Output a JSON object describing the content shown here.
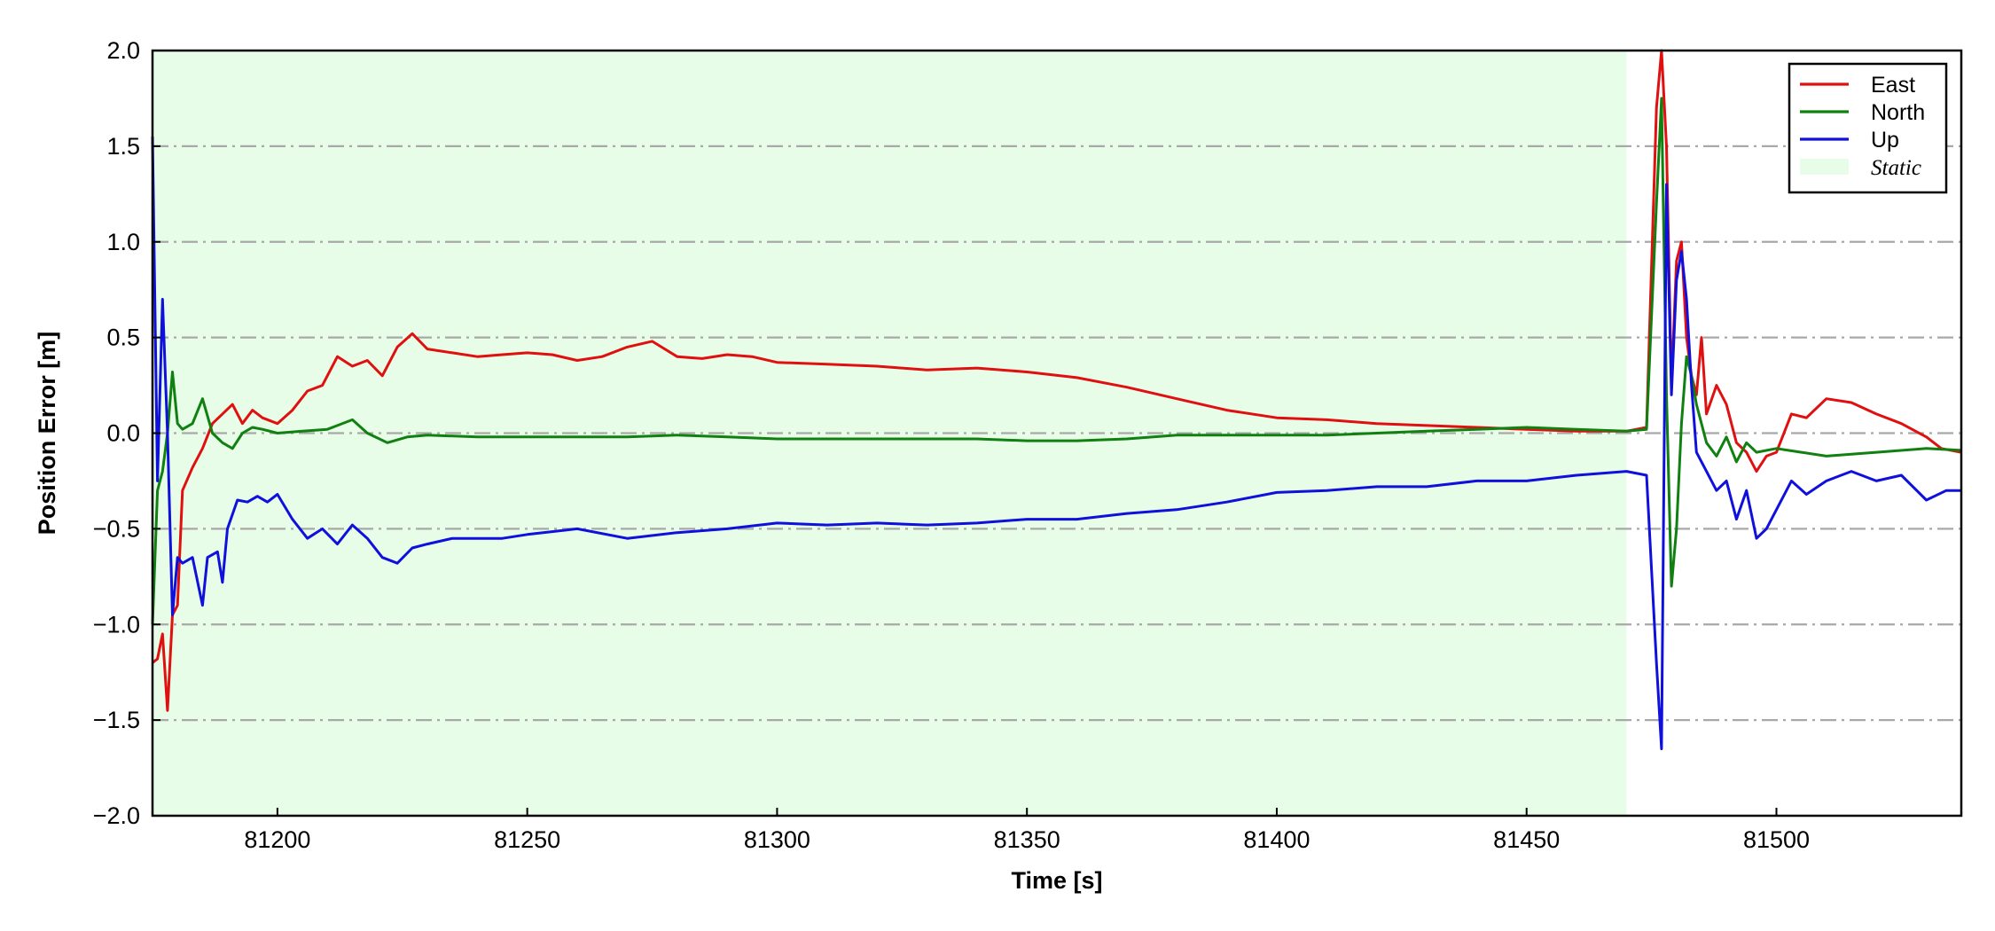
{
  "chart_data": {
    "type": "line",
    "title": "",
    "xlabel": "Time [s]",
    "ylabel": "Position Error [m]",
    "xlim": [
      81175,
      81537
    ],
    "ylim": [
      -2.0,
      2.0
    ],
    "x_ticks": [
      81200,
      81250,
      81300,
      81350,
      81400,
      81450,
      81500
    ],
    "x_tick_labels": [
      "81200",
      "81250",
      "81300",
      "81350",
      "81400",
      "81450",
      "81500"
    ],
    "y_ticks": [
      -2.0,
      -1.5,
      -1.0,
      -0.5,
      0.0,
      0.5,
      1.0,
      1.5,
      2.0
    ],
    "y_tick_labels": [
      "−2.0",
      "−1.5",
      "−1.0",
      "−0.5",
      "0.0",
      "0.5",
      "1.0",
      "1.5",
      "2.0"
    ],
    "grid": "horizontal dash-dot gray",
    "legend_position": "top-right",
    "shaded_region": {
      "name": "Static",
      "x_start": 81175,
      "x_end": 81470,
      "color": "#e8fde8"
    },
    "series": [
      {
        "name": "East",
        "color": "#e01010",
        "x": [
          81175,
          81176,
          81177,
          81178,
          81179,
          81180,
          81181,
          81183,
          81185,
          81187,
          81189,
          81191,
          81193,
          81195,
          81197,
          81200,
          81203,
          81206,
          81209,
          81212,
          81215,
          81218,
          81221,
          81224,
          81227,
          81230,
          81235,
          81240,
          81245,
          81250,
          81255,
          81260,
          81265,
          81270,
          81275,
          81280,
          81285,
          81290,
          81295,
          81300,
          81310,
          81320,
          81330,
          81340,
          81350,
          81360,
          81370,
          81380,
          81390,
          81400,
          81410,
          81420,
          81430,
          81440,
          81450,
          81460,
          81470,
          81474,
          81476,
          81477,
          81478,
          81479,
          81480,
          81481,
          81482,
          81483,
          81484,
          81485,
          81486,
          81488,
          81490,
          81492,
          81494,
          81496,
          81498,
          81500,
          81503,
          81506,
          81510,
          81515,
          81520,
          81525,
          81530,
          81533,
          81537
        ],
        "values": [
          -1.2,
          -1.18,
          -1.05,
          -1.45,
          -0.95,
          -0.9,
          -0.3,
          -0.18,
          -0.08,
          0.05,
          0.1,
          0.15,
          0.05,
          0.12,
          0.08,
          0.05,
          0.12,
          0.22,
          0.25,
          0.4,
          0.35,
          0.38,
          0.3,
          0.45,
          0.52,
          0.44,
          0.42,
          0.4,
          0.41,
          0.42,
          0.41,
          0.38,
          0.4,
          0.45,
          0.48,
          0.4,
          0.39,
          0.41,
          0.4,
          0.37,
          0.36,
          0.35,
          0.33,
          0.34,
          0.32,
          0.29,
          0.24,
          0.18,
          0.12,
          0.08,
          0.07,
          0.05,
          0.04,
          0.03,
          0.02,
          0.01,
          0.01,
          0.03,
          1.7,
          2.0,
          1.5,
          0.25,
          0.9,
          1.0,
          0.5,
          0.3,
          0.2,
          0.5,
          0.1,
          0.25,
          0.15,
          -0.05,
          -0.1,
          -0.2,
          -0.12,
          -0.1,
          0.1,
          0.08,
          0.18,
          0.16,
          0.1,
          0.05,
          -0.02,
          -0.08,
          -0.1
        ]
      },
      {
        "name": "North",
        "color": "#108010",
        "x": [
          81175,
          81176,
          81177,
          81178,
          81179,
          81180,
          81181,
          81183,
          81185,
          81187,
          81189,
          81191,
          81193,
          81195,
          81197,
          81200,
          81205,
          81210,
          81215,
          81218,
          81222,
          81226,
          81230,
          81240,
          81250,
          81260,
          81270,
          81280,
          81290,
          81300,
          81310,
          81320,
          81330,
          81340,
          81350,
          81360,
          81370,
          81380,
          81390,
          81400,
          81410,
          81420,
          81430,
          81440,
          81450,
          81460,
          81470,
          81474,
          81476,
          81477,
          81478,
          81479,
          81480,
          81481,
          81482,
          81483,
          81484,
          81486,
          81488,
          81490,
          81492,
          81494,
          81496,
          81500,
          81505,
          81510,
          81520,
          81530,
          81537
        ],
        "values": [
          -1.0,
          -0.3,
          -0.2,
          0.0,
          0.32,
          0.05,
          0.02,
          0.05,
          0.18,
          0.0,
          -0.05,
          -0.08,
          0.0,
          0.03,
          0.02,
          0.0,
          0.01,
          0.02,
          0.07,
          0.0,
          -0.05,
          -0.02,
          -0.01,
          -0.02,
          -0.02,
          -0.02,
          -0.02,
          -0.01,
          -0.02,
          -0.03,
          -0.03,
          -0.03,
          -0.03,
          -0.03,
          -0.04,
          -0.04,
          -0.03,
          -0.01,
          -0.01,
          -0.01,
          -0.01,
          0.0,
          0.01,
          0.02,
          0.03,
          0.02,
          0.01,
          0.02,
          1.2,
          1.75,
          0.2,
          -0.8,
          -0.5,
          0.05,
          0.4,
          0.3,
          0.15,
          -0.05,
          -0.12,
          -0.02,
          -0.15,
          -0.05,
          -0.1,
          -0.08,
          -0.1,
          -0.12,
          -0.1,
          -0.08,
          -0.09
        ]
      },
      {
        "name": "Up",
        "color": "#1010dd",
        "x": [
          81175,
          81176,
          81177,
          81178,
          81179,
          81180,
          81181,
          81183,
          81185,
          81186,
          81188,
          81189,
          81190,
          81192,
          81194,
          81196,
          81198,
          81200,
          81203,
          81206,
          81209,
          81212,
          81215,
          81218,
          81221,
          81224,
          81227,
          81230,
          81235,
          81240,
          81245,
          81250,
          81260,
          81270,
          81280,
          81290,
          81300,
          81310,
          81320,
          81330,
          81340,
          81350,
          81360,
          81370,
          81380,
          81390,
          81400,
          81410,
          81420,
          81430,
          81440,
          81450,
          81460,
          81470,
          81474,
          81476,
          81477,
          81478,
          81479,
          81480,
          81481,
          81482,
          81483,
          81484,
          81486,
          81488,
          81490,
          81492,
          81494,
          81496,
          81498,
          81500,
          81503,
          81506,
          81510,
          81515,
          81520,
          81525,
          81530,
          81534,
          81537
        ],
        "values": [
          1.55,
          -0.25,
          0.7,
          0.0,
          -0.95,
          -0.65,
          -0.68,
          -0.65,
          -0.9,
          -0.65,
          -0.62,
          -0.78,
          -0.5,
          -0.35,
          -0.36,
          -0.33,
          -0.36,
          -0.32,
          -0.45,
          -0.55,
          -0.5,
          -0.58,
          -0.48,
          -0.55,
          -0.65,
          -0.68,
          -0.6,
          -0.58,
          -0.55,
          -0.55,
          -0.55,
          -0.53,
          -0.5,
          -0.55,
          -0.52,
          -0.5,
          -0.47,
          -0.48,
          -0.47,
          -0.48,
          -0.47,
          -0.45,
          -0.45,
          -0.42,
          -0.4,
          -0.36,
          -0.31,
          -0.3,
          -0.28,
          -0.28,
          -0.25,
          -0.25,
          -0.22,
          -0.2,
          -0.22,
          -1.2,
          -1.65,
          1.3,
          0.2,
          0.8,
          0.95,
          0.7,
          0.25,
          -0.1,
          -0.2,
          -0.3,
          -0.25,
          -0.45,
          -0.3,
          -0.55,
          -0.5,
          -0.4,
          -0.25,
          -0.32,
          -0.25,
          -0.2,
          -0.25,
          -0.22,
          -0.35,
          -0.3,
          -0.3
        ]
      }
    ]
  },
  "legend": {
    "items": [
      {
        "label": "East",
        "color": "#e01010",
        "kind": "line"
      },
      {
        "label": "North",
        "color": "#108010",
        "kind": "line"
      },
      {
        "label": "Up",
        "color": "#1010dd",
        "kind": "line"
      },
      {
        "label": "Static",
        "color": "#e8fde8",
        "kind": "patch"
      }
    ]
  }
}
